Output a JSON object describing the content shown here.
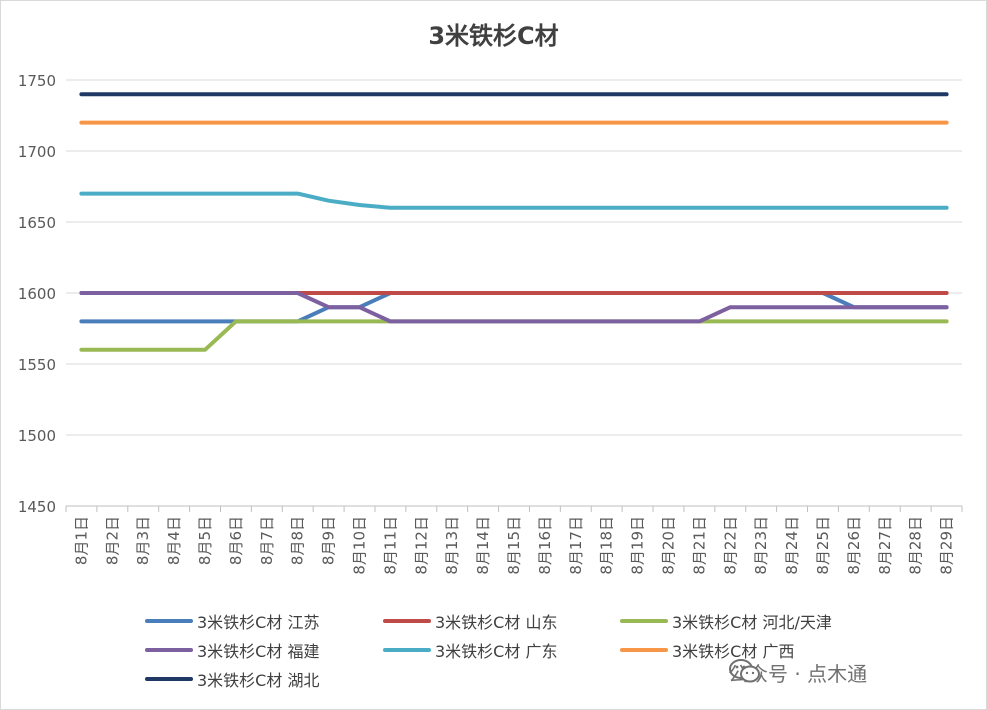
{
  "chart_data": {
    "type": "line",
    "title": "3米铁杉C材",
    "xlabel": "",
    "ylabel": "",
    "ylim": [
      1450,
      1750
    ],
    "yticks": [
      1450,
      1500,
      1550,
      1600,
      1650,
      1700,
      1750
    ],
    "grid": true,
    "legend_position": "bottom",
    "categories": [
      "8月1日",
      "8月2日",
      "8月3日",
      "8月4日",
      "8月5日",
      "8月6日",
      "8月7日",
      "8月8日",
      "8月9日",
      "8月10日",
      "8月11日",
      "8月12日",
      "8月13日",
      "8月14日",
      "8月15日",
      "8月16日",
      "8月17日",
      "8月18日",
      "8月19日",
      "8月20日",
      "8月21日",
      "8月22日",
      "8月23日",
      "8月24日",
      "8月25日",
      "8月26日",
      "8月27日",
      "8月28日",
      "8月29日"
    ],
    "series": [
      {
        "name": "3米铁杉C材 江苏",
        "color": "#4a7ebb",
        "values": [
          1580,
          1580,
          1580,
          1580,
          1580,
          1580,
          1580,
          1580,
          1590,
          1590,
          1600,
          1600,
          1600,
          1600,
          1600,
          1600,
          1600,
          1600,
          1600,
          1600,
          1600,
          1600,
          1600,
          1600,
          1600,
          1590,
          1590,
          1590,
          1590
        ]
      },
      {
        "name": "3米铁杉C材 山东",
        "color": "#be4b48",
        "values": [
          1600,
          1600,
          1600,
          1600,
          1600,
          1600,
          1600,
          1600,
          1600,
          1600,
          1600,
          1600,
          1600,
          1600,
          1600,
          1600,
          1600,
          1600,
          1600,
          1600,
          1600,
          1600,
          1600,
          1600,
          1600,
          1600,
          1600,
          1600,
          1600
        ]
      },
      {
        "name": "3米铁杉C材 河北/天津",
        "color": "#98b954",
        "values": [
          1560,
          1560,
          1560,
          1560,
          1560,
          1580,
          1580,
          1580,
          1580,
          1580,
          1580,
          1580,
          1580,
          1580,
          1580,
          1580,
          1580,
          1580,
          1580,
          1580,
          1580,
          1580,
          1580,
          1580,
          1580,
          1580,
          1580,
          1580,
          1580
        ]
      },
      {
        "name": "3米铁杉C材 福建",
        "color": "#7d60a0",
        "values": [
          1600,
          1600,
          1600,
          1600,
          1600,
          1600,
          1600,
          1600,
          1590,
          1590,
          1580,
          1580,
          1580,
          1580,
          1580,
          1580,
          1580,
          1580,
          1580,
          1580,
          1580,
          1590,
          1590,
          1590,
          1590,
          1590,
          1590,
          1590,
          1590
        ]
      },
      {
        "name": "3米铁杉C材 广东",
        "color": "#4bacc6",
        "values": [
          1670,
          1670,
          1670,
          1670,
          1670,
          1670,
          1670,
          1670,
          1665,
          1662,
          1660,
          1660,
          1660,
          1660,
          1660,
          1660,
          1660,
          1660,
          1660,
          1660,
          1660,
          1660,
          1660,
          1660,
          1660,
          1660,
          1660,
          1660,
          1660
        ]
      },
      {
        "name": "3米铁杉C材 广西",
        "color": "#f79646",
        "values": [
          1720,
          1720,
          1720,
          1720,
          1720,
          1720,
          1720,
          1720,
          1720,
          1720,
          1720,
          1720,
          1720,
          1720,
          1720,
          1720,
          1720,
          1720,
          1720,
          1720,
          1720,
          1720,
          1720,
          1720,
          1720,
          1720,
          1720,
          1720,
          1720
        ]
      },
      {
        "name": "3米铁杉C材 湖北",
        "color": "#1f3864",
        "values": [
          1740,
          1740,
          1740,
          1740,
          1740,
          1740,
          1740,
          1740,
          1740,
          1740,
          1740,
          1740,
          1740,
          1740,
          1740,
          1740,
          1740,
          1740,
          1740,
          1740,
          1740,
          1740,
          1740,
          1740,
          1740,
          1740,
          1740,
          1740,
          1740
        ]
      }
    ]
  },
  "watermark": {
    "text": "公众号 · 点木通",
    "icon": "wechat-icon"
  }
}
